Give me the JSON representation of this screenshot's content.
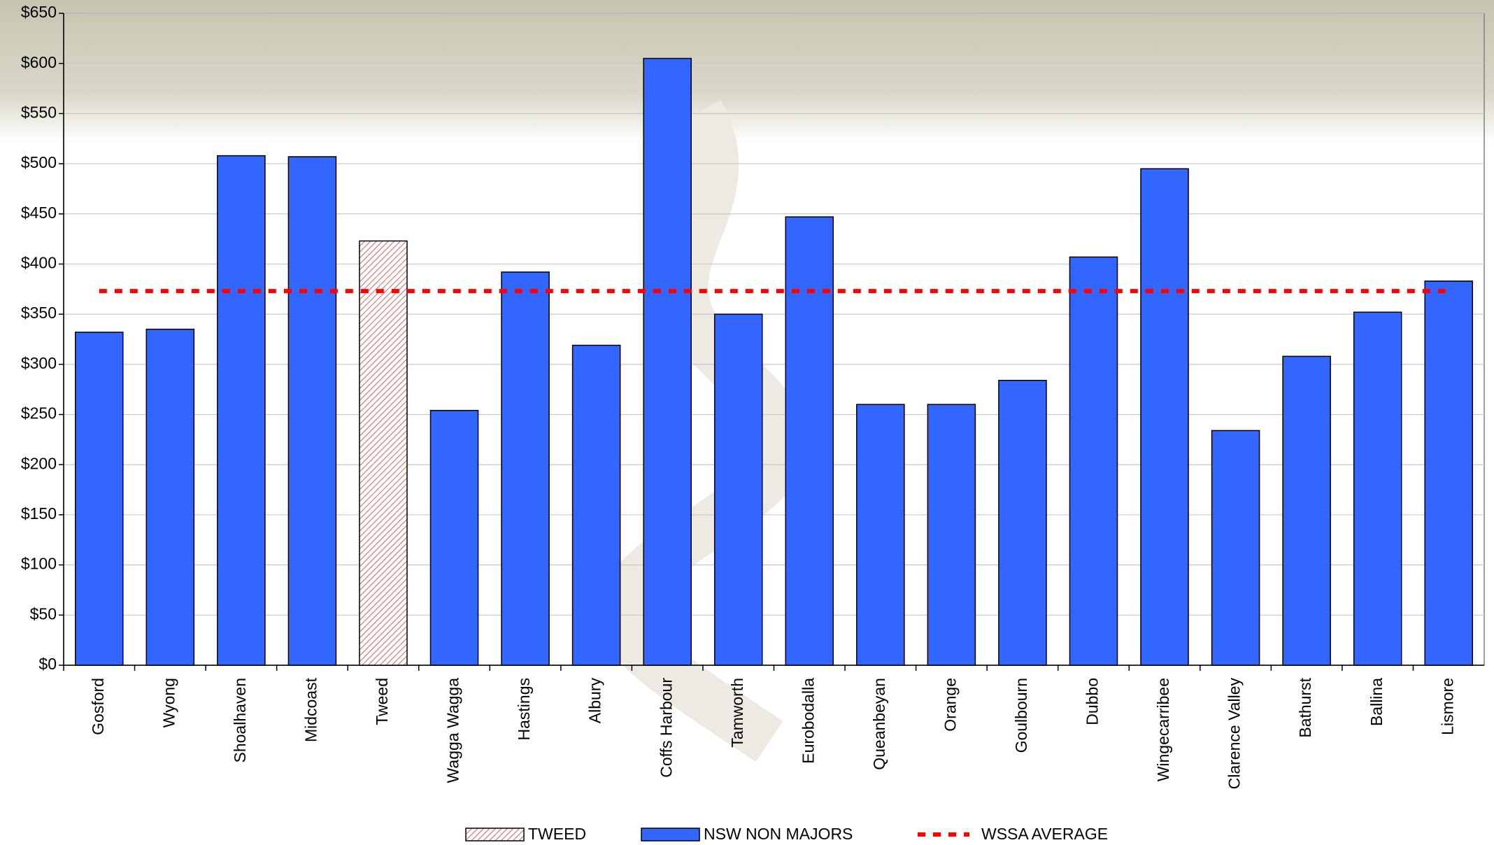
{
  "chart_data": {
    "type": "bar",
    "categories": [
      "Gosford",
      "Wyong",
      "Shoalhaven",
      "Midcoast",
      "Tweed",
      "Wagga Wagga",
      "Hastings",
      "Albury",
      "Coffs Harbour",
      "Tamworth",
      "Eurobodalla",
      "Queanbeyan",
      "Orange",
      "Goulbourn",
      "Dubbo",
      "Wingecarribee",
      "Clarence Valley",
      "Bathurst",
      "Ballina",
      "Lismore"
    ],
    "series": [
      {
        "name": "TWEED",
        "type": "hatched-bar",
        "color": "#e8332c",
        "values": [
          null,
          null,
          null,
          null,
          423,
          null,
          null,
          null,
          null,
          null,
          null,
          null,
          null,
          null,
          null,
          null,
          null,
          null,
          null,
          null
        ]
      },
      {
        "name": "NSW NON MAJORS",
        "type": "bar",
        "color": "#3366ff",
        "values": [
          332,
          335,
          508,
          507,
          null,
          254,
          392,
          319,
          605,
          350,
          447,
          260,
          260,
          284,
          407,
          495,
          234,
          308,
          352,
          383
        ]
      },
      {
        "name": "WSSA AVERAGE",
        "type": "dashed-line",
        "color": "#ff0000",
        "values": [
          373,
          373,
          373,
          373,
          373,
          373,
          373,
          373,
          373,
          373,
          373,
          373,
          373,
          373,
          373,
          373,
          373,
          373,
          373,
          373
        ]
      }
    ],
    "ylim": [
      0,
      650
    ],
    "yticks": [
      {
        "value": 0,
        "label": "$0"
      },
      {
        "value": 50,
        "label": "$50"
      },
      {
        "value": 100,
        "label": "$100"
      },
      {
        "value": 150,
        "label": "$150"
      },
      {
        "value": 200,
        "label": "$200"
      },
      {
        "value": 250,
        "label": "$250"
      },
      {
        "value": 300,
        "label": "$300"
      },
      {
        "value": 350,
        "label": "$350"
      },
      {
        "value": 400,
        "label": "$400"
      },
      {
        "value": 450,
        "label": "$450"
      },
      {
        "value": 500,
        "label": "$500"
      },
      {
        "value": 550,
        "label": "$550"
      },
      {
        "value": 600,
        "label": "$600"
      },
      {
        "value": 650,
        "label": "$650"
      }
    ],
    "grid": true,
    "legend": "bottom"
  }
}
